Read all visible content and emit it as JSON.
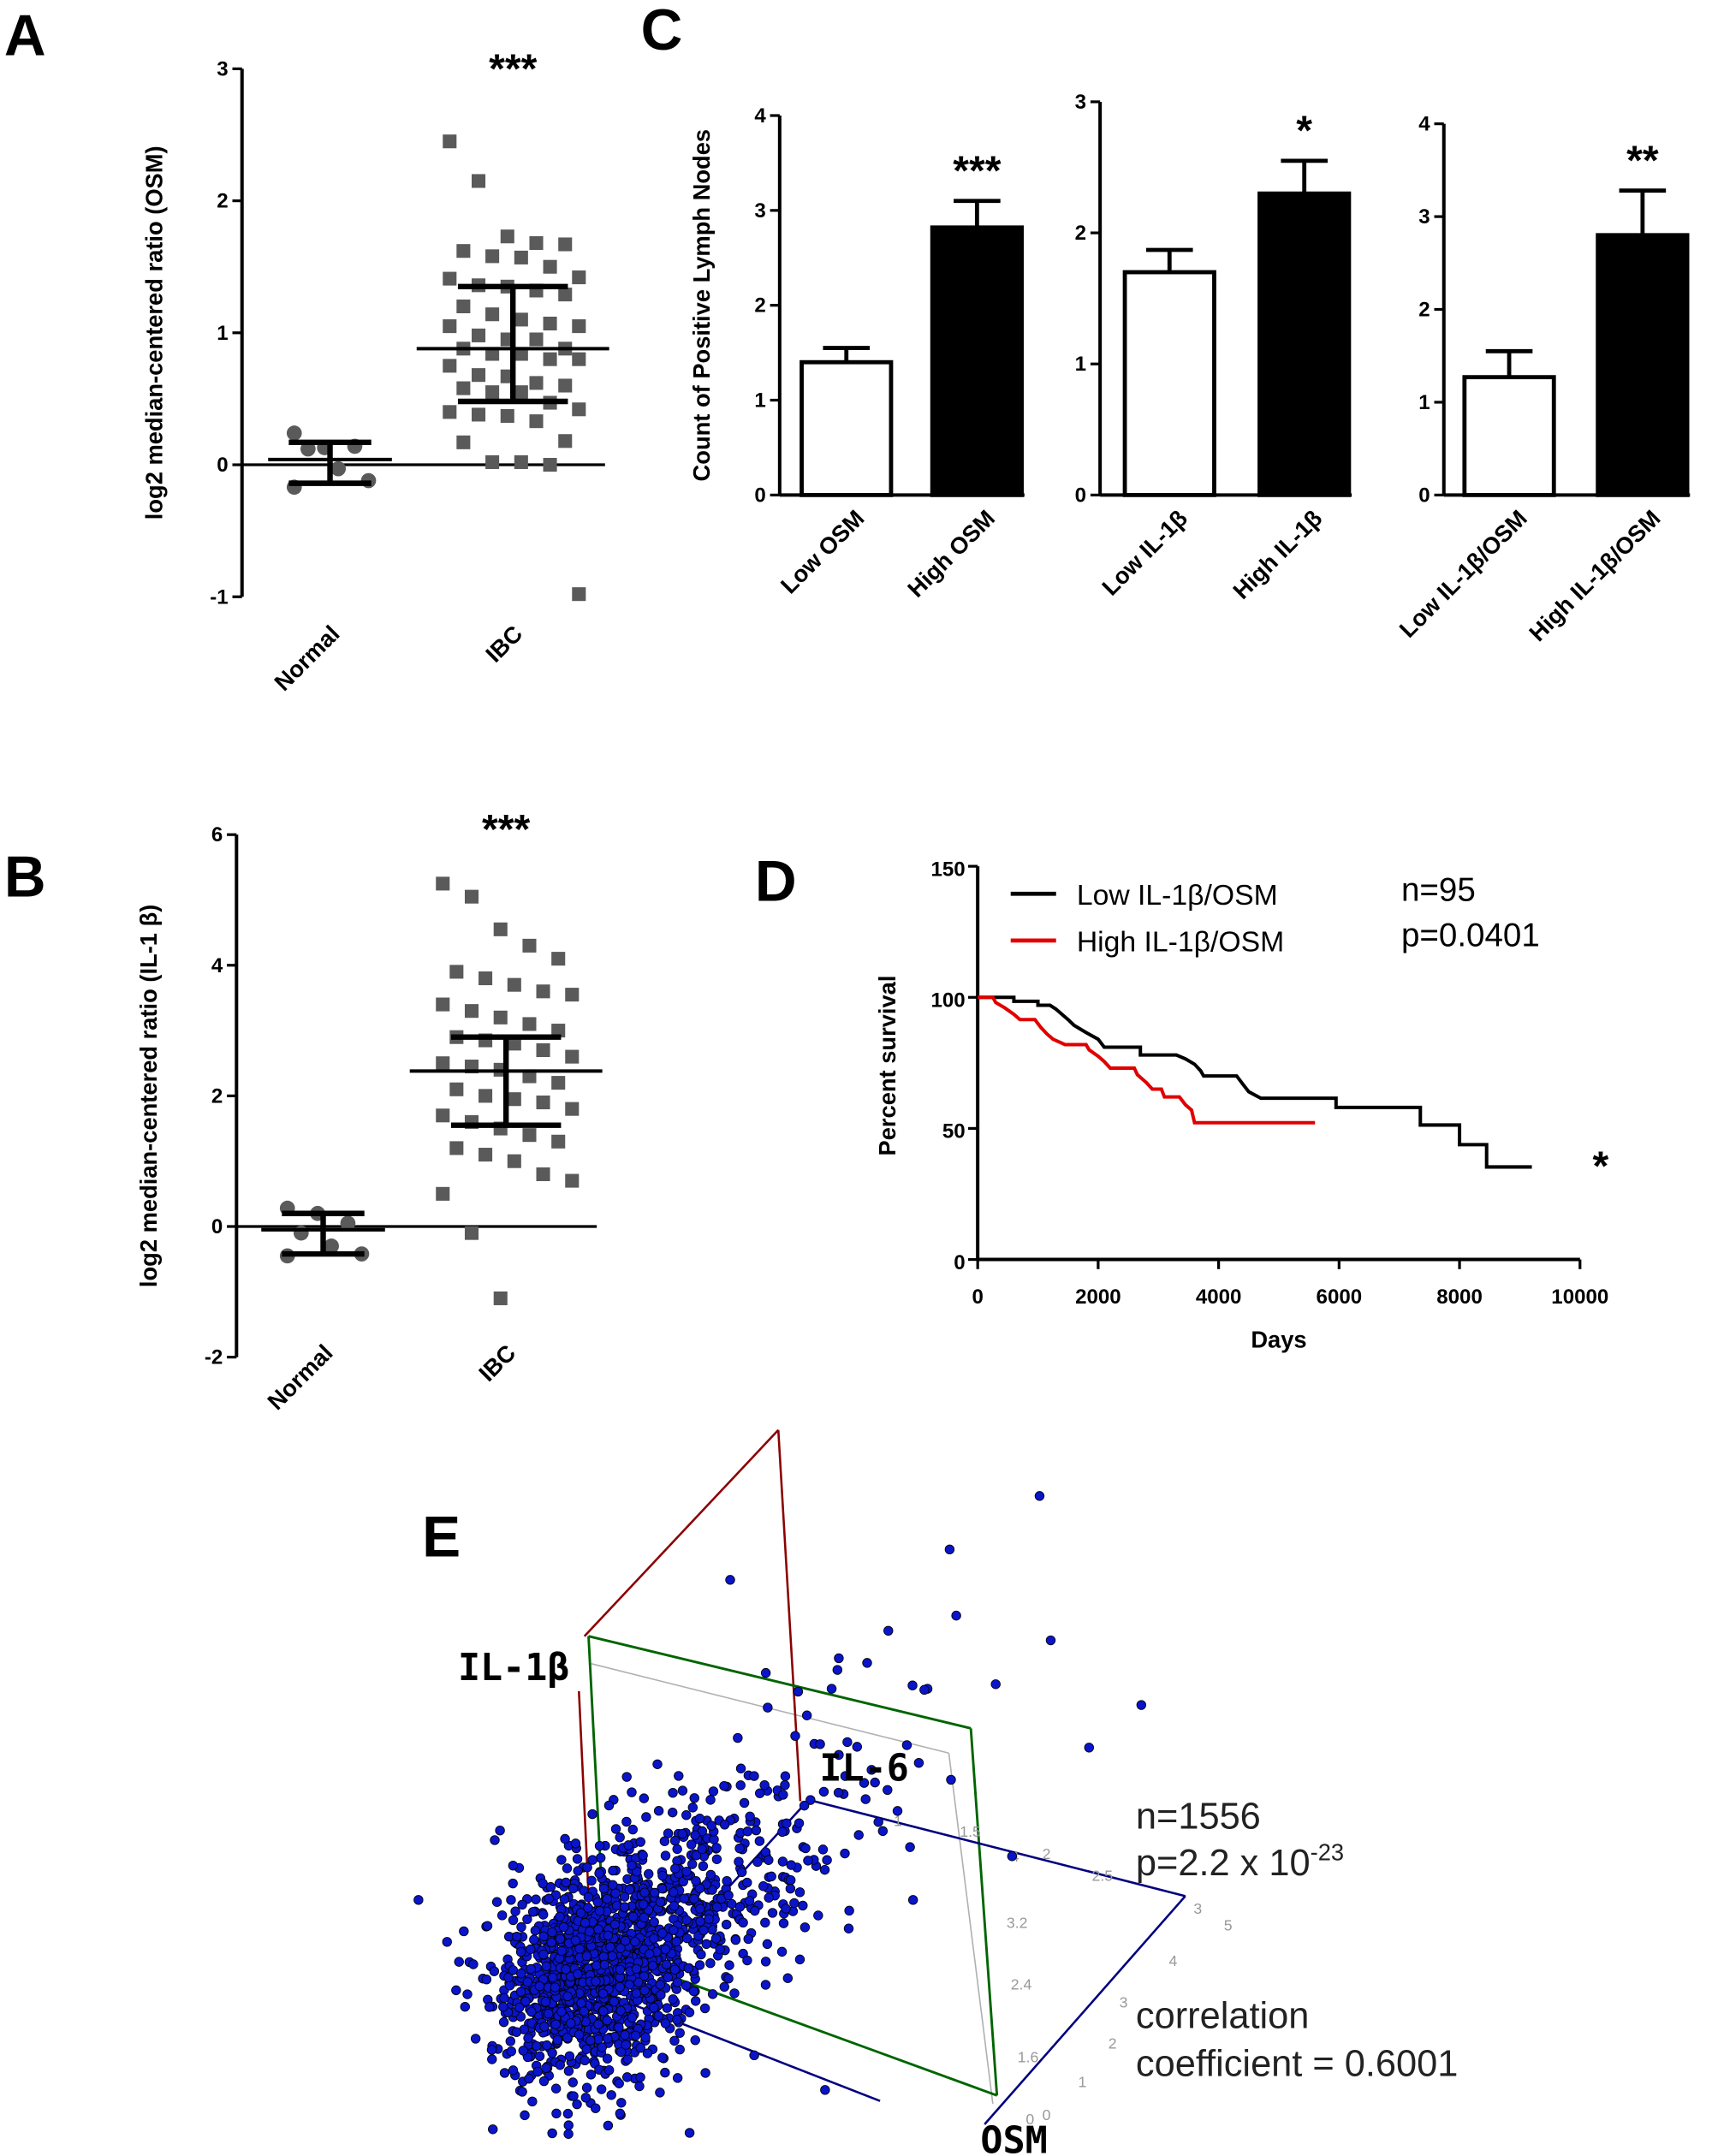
{
  "colors": {
    "black": "#000000",
    "red": "#e00000",
    "gray_points": "#5a5a5a",
    "scatter_fill": "#0a14c8",
    "frame_red": "#8b0000",
    "frame_green": "#006400",
    "frame_blue": "#000080",
    "frame_gray": "#b0b0b0"
  },
  "chart_data": [
    {
      "panel": "A",
      "type": "scatter",
      "ylabel": "log2 median-centered ratio (OSM)",
      "ylim": [
        -1,
        3
      ],
      "yticks": [
        "-1",
        "0",
        "1",
        "2",
        "3"
      ],
      "categories": [
        "Normal",
        "IBC"
      ],
      "significance": "***",
      "series": [
        {
          "category": "Normal",
          "marker": "circle",
          "values": [
            0.24,
            0.13,
            0.14,
            0.12,
            -0.03,
            -0.12,
            -0.17
          ],
          "mean": 0.04,
          "sd_low": -0.14,
          "sd_high": 0.17
        },
        {
          "category": "IBC",
          "marker": "square",
          "values": [
            2.45,
            2.15,
            1.73,
            1.68,
            1.67,
            1.62,
            1.58,
            1.57,
            1.5,
            1.42,
            1.41,
            1.36,
            1.35,
            1.32,
            1.29,
            1.2,
            1.14,
            1.1,
            1.07,
            1.05,
            1.05,
            0.98,
            0.95,
            0.95,
            0.88,
            0.88,
            0.84,
            0.84,
            0.8,
            0.8,
            0.75,
            0.68,
            0.67,
            0.62,
            0.6,
            0.58,
            0.55,
            0.55,
            0.47,
            0.42,
            0.4,
            0.38,
            0.37,
            0.33,
            0.18,
            0.17,
            0.02,
            0.02,
            0.0,
            -0.98
          ],
          "mean": 0.88,
          "sd_low": 0.48,
          "sd_high": 1.35
        }
      ]
    },
    {
      "panel": "B",
      "type": "scatter",
      "ylabel": "log2 median-centered ratio (IL-1 β)",
      "ylim": [
        -2,
        6
      ],
      "yticks": [
        "-2",
        "0",
        "2",
        "4",
        "6"
      ],
      "categories": [
        "Normal",
        "IBC"
      ],
      "significance": "***",
      "series": [
        {
          "category": "Normal",
          "marker": "circle",
          "values": [
            0.28,
            0.2,
            0.05,
            -0.1,
            -0.3,
            -0.42,
            -0.45
          ],
          "mean": -0.05,
          "sd_low": -0.42,
          "sd_high": 0.2
        },
        {
          "category": "IBC",
          "marker": "square",
          "values": [
            5.25,
            5.05,
            4.55,
            4.3,
            4.1,
            3.9,
            3.8,
            3.7,
            3.6,
            3.55,
            3.4,
            3.3,
            3.2,
            3.1,
            3.0,
            2.9,
            2.85,
            2.8,
            2.7,
            2.6,
            2.5,
            2.45,
            2.4,
            2.3,
            2.2,
            2.1,
            2.0,
            1.95,
            1.9,
            1.8,
            1.7,
            1.6,
            1.5,
            1.4,
            1.3,
            1.2,
            1.1,
            1.0,
            0.8,
            0.7,
            0.5,
            -0.1,
            -1.1
          ],
          "mean": 2.38,
          "sd_low": 1.55,
          "sd_high": 2.9
        }
      ]
    },
    {
      "panel": "C",
      "type": "bar",
      "ylabel": "Count of Positive Lymph Nodes",
      "subplots": [
        {
          "ylim": [
            0,
            4
          ],
          "yticks": [
            "0",
            "1",
            "2",
            "3",
            "4"
          ],
          "categories": [
            "Low OSM",
            "High OSM"
          ],
          "values": [
            1.4,
            2.82
          ],
          "errors": [
            0.15,
            0.28
          ],
          "fills": [
            "white",
            "black"
          ],
          "significance": "***"
        },
        {
          "ylim": [
            0,
            3
          ],
          "yticks": [
            "0",
            "1",
            "2",
            "3"
          ],
          "categories": [
            "Low IL-1β",
            "High IL-1β"
          ],
          "values": [
            1.7,
            2.3
          ],
          "errors": [
            0.17,
            0.25
          ],
          "fills": [
            "white",
            "black"
          ],
          "significance": "*"
        },
        {
          "ylim": [
            0,
            4
          ],
          "yticks": [
            "0",
            "1",
            "2",
            "3",
            "4"
          ],
          "categories": [
            "Low IL-1β/OSM",
            "High IL-1β/OSM"
          ],
          "values": [
            1.27,
            2.8
          ],
          "errors": [
            0.28,
            0.48
          ],
          "fills": [
            "white",
            "black"
          ],
          "significance": "**"
        }
      ]
    },
    {
      "panel": "D",
      "type": "line",
      "xlabel": "Days",
      "ylabel": "Percent survival",
      "xlim": [
        0,
        10000
      ],
      "ylim": [
        0,
        150
      ],
      "xticks": [
        "0",
        "2000",
        "4000",
        "6000",
        "8000",
        "10000"
      ],
      "yticks": [
        "0",
        "50",
        "100",
        "150"
      ],
      "legend_position": "top-left",
      "annotation_n": "n=95",
      "annotation_p": "p=0.0401",
      "significance": "*",
      "series": [
        {
          "name": "Low IL-1β/OSM",
          "color": "#000000",
          "points": [
            [
              0,
              100
            ],
            [
              600,
              100
            ],
            [
              600,
              98.5
            ],
            [
              1000,
              98.5
            ],
            [
              1000,
              97
            ],
            [
              1200,
              97
            ],
            [
              1300,
              95.5
            ],
            [
              1400,
              93.5
            ],
            [
              1500,
              91.5
            ],
            [
              1600,
              89.3
            ],
            [
              1800,
              86.6
            ],
            [
              2000,
              84
            ],
            [
              2100,
              81
            ],
            [
              2700,
              81
            ],
            [
              2700,
              78
            ],
            [
              3300,
              78
            ],
            [
              3450,
              76.5
            ],
            [
              3600,
              74.5
            ],
            [
              3700,
              72
            ],
            [
              3750,
              70
            ],
            [
              4300,
              70
            ],
            [
              4400,
              67
            ],
            [
              4500,
              64
            ],
            [
              4700,
              61.5
            ],
            [
              5950,
              61.5
            ],
            [
              5950,
              58
            ],
            [
              7350,
              58
            ],
            [
              7350,
              51.3
            ],
            [
              8000,
              51.3
            ],
            [
              8000,
              43.8
            ],
            [
              8450,
              43.8
            ],
            [
              8450,
              35.3
            ],
            [
              9200,
              35.3
            ]
          ]
        },
        {
          "name": "High IL-1β/OSM",
          "color": "#e00000",
          "points": [
            [
              0,
              100
            ],
            [
              250,
              100
            ],
            [
              300,
              98
            ],
            [
              450,
              96
            ],
            [
              600,
              93.5
            ],
            [
              700,
              91.5
            ],
            [
              950,
              91.5
            ],
            [
              1050,
              88.5
            ],
            [
              1150,
              86
            ],
            [
              1250,
              84
            ],
            [
              1450,
              82
            ],
            [
              1800,
              82
            ],
            [
              1850,
              80
            ],
            [
              2000,
              77.5
            ],
            [
              2100,
              75.5
            ],
            [
              2200,
              73
            ],
            [
              2600,
              73
            ],
            [
              2650,
              70.5
            ],
            [
              2800,
              67.5
            ],
            [
              2900,
              65
            ],
            [
              3050,
              65
            ],
            [
              3100,
              62
            ],
            [
              3350,
              62
            ],
            [
              3450,
              59
            ],
            [
              3550,
              57
            ],
            [
              3600,
              52.2
            ],
            [
              5600,
              52.2
            ]
          ]
        }
      ]
    },
    {
      "panel": "E",
      "type": "scatter",
      "axes": [
        "IL-1β",
        "IL-6",
        "OSM"
      ],
      "n": "n=1556",
      "p_prefix": "p=2.2 x 10",
      "p_exp": "-23",
      "correlation_line1": "correlation",
      "correlation_line2": "coefficient = 0.6001",
      "tick_labels_il6": [
        "1",
        "1.5",
        "2",
        "2.5",
        "3"
      ],
      "tick_labels_il1b": [
        "4",
        "3.2",
        "2.4",
        "1.6",
        "0"
      ],
      "tick_labels_osm": [
        "5",
        "4",
        "3",
        "2",
        "1",
        "0"
      ]
    }
  ],
  "panel_letters": [
    "A",
    "B",
    "C",
    "D",
    "E"
  ]
}
